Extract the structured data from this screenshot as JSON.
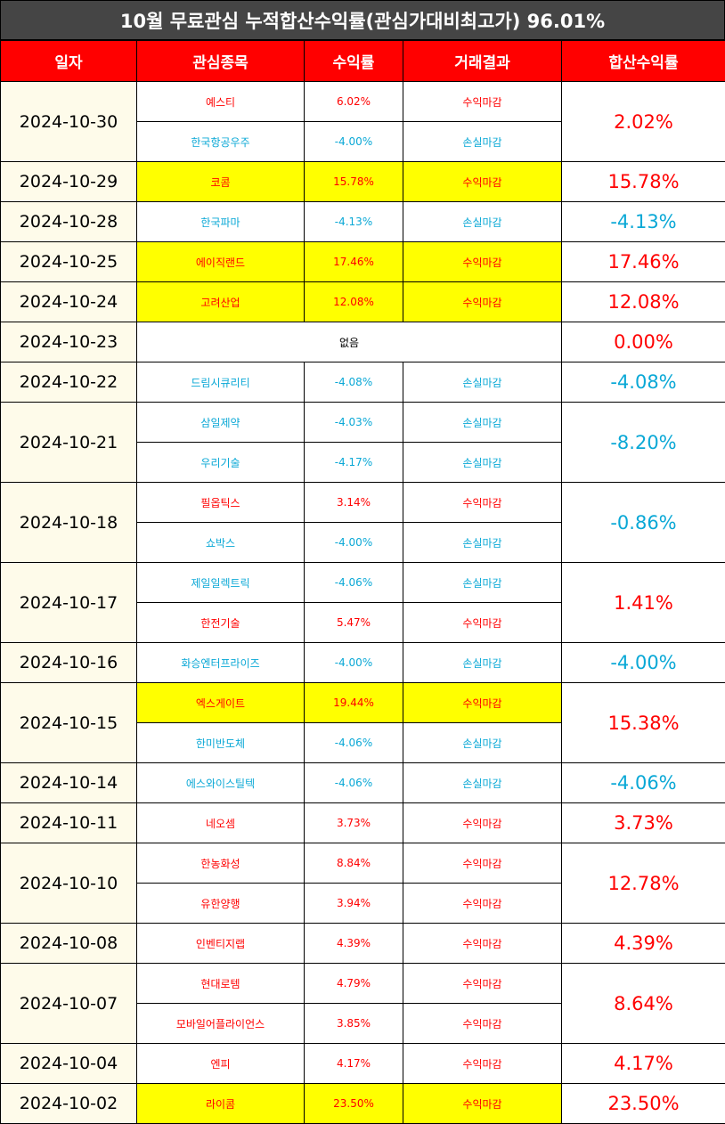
{
  "title": "10월 무료관심 누적합산수익률(관심가대비최고가) 96.01%",
  "headers": {
    "date": "일자",
    "stock": "관심종목",
    "ret": "수익률",
    "result": "거래결과",
    "total": "합산수익률"
  },
  "colors": {
    "header_bg": "#ff0000",
    "title_bg": "#454545",
    "profit": "#ff0000",
    "loss": "#0aa8d6",
    "highlight": "#ffff00",
    "date_bg": "#fefbea"
  },
  "rows": [
    {
      "date": "2024-10-30",
      "total": "2.02%",
      "total_sign": "profit",
      "items": [
        {
          "stock": "예스티",
          "ret": "6.02%",
          "result": "수익마감",
          "sign": "profit",
          "hl": false
        },
        {
          "stock": "한국항공우주",
          "ret": "-4.00%",
          "result": "손실마감",
          "sign": "loss",
          "hl": false
        }
      ]
    },
    {
      "date": "2024-10-29",
      "total": "15.78%",
      "total_sign": "profit",
      "items": [
        {
          "stock": "코콤",
          "ret": "15.78%",
          "result": "수익마감",
          "sign": "profit",
          "hl": true
        }
      ]
    },
    {
      "date": "2024-10-28",
      "total": "-4.13%",
      "total_sign": "loss",
      "items": [
        {
          "stock": "한국파마",
          "ret": "-4.13%",
          "result": "손실마감",
          "sign": "loss",
          "hl": false
        }
      ]
    },
    {
      "date": "2024-10-25",
      "total": "17.46%",
      "total_sign": "profit",
      "items": [
        {
          "stock": "에이직랜드",
          "ret": "17.46%",
          "result": "수익마감",
          "sign": "profit",
          "hl": true
        }
      ]
    },
    {
      "date": "2024-10-24",
      "total": "12.08%",
      "total_sign": "profit",
      "items": [
        {
          "stock": "고려산업",
          "ret": "12.08%",
          "result": "수익마감",
          "sign": "profit",
          "hl": true
        }
      ]
    },
    {
      "date": "2024-10-23",
      "total": "0.00%",
      "total_sign": "zero",
      "none": "없음",
      "items": []
    },
    {
      "date": "2024-10-22",
      "total": "-4.08%",
      "total_sign": "loss",
      "items": [
        {
          "stock": "드림시큐리티",
          "ret": "-4.08%",
          "result": "손실마감",
          "sign": "loss",
          "hl": false
        }
      ]
    },
    {
      "date": "2024-10-21",
      "total": "-8.20%",
      "total_sign": "loss",
      "items": [
        {
          "stock": "삼일제약",
          "ret": "-4.03%",
          "result": "손실마감",
          "sign": "loss",
          "hl": false
        },
        {
          "stock": "우리기술",
          "ret": "-4.17%",
          "result": "손실마감",
          "sign": "loss",
          "hl": false
        }
      ]
    },
    {
      "date": "2024-10-18",
      "total": "-0.86%",
      "total_sign": "loss",
      "items": [
        {
          "stock": "필옵틱스",
          "ret": "3.14%",
          "result": "수익마감",
          "sign": "profit",
          "hl": false
        },
        {
          "stock": "쇼박스",
          "ret": "-4.00%",
          "result": "손실마감",
          "sign": "loss",
          "hl": false
        }
      ]
    },
    {
      "date": "2024-10-17",
      "total": "1.41%",
      "total_sign": "profit",
      "items": [
        {
          "stock": "제일일렉트릭",
          "ret": "-4.06%",
          "result": "손실마감",
          "sign": "loss",
          "hl": false
        },
        {
          "stock": "한전기술",
          "ret": "5.47%",
          "result": "수익마감",
          "sign": "profit",
          "hl": false
        }
      ]
    },
    {
      "date": "2024-10-16",
      "total": "-4.00%",
      "total_sign": "loss",
      "items": [
        {
          "stock": "화승엔터프라이즈",
          "ret": "-4.00%",
          "result": "손실마감",
          "sign": "loss",
          "hl": false
        }
      ]
    },
    {
      "date": "2024-10-15",
      "total": "15.38%",
      "total_sign": "profit",
      "items": [
        {
          "stock": "엑스게이트",
          "ret": "19.44%",
          "result": "수익마감",
          "sign": "profit",
          "hl": true
        },
        {
          "stock": "한미반도체",
          "ret": "-4.06%",
          "result": "손실마감",
          "sign": "loss",
          "hl": false
        }
      ]
    },
    {
      "date": "2024-10-14",
      "total": "-4.06%",
      "total_sign": "loss",
      "items": [
        {
          "stock": "에스와이스틸텍",
          "ret": "-4.06%",
          "result": "손실마감",
          "sign": "loss",
          "hl": false
        }
      ]
    },
    {
      "date": "2024-10-11",
      "total": "3.73%",
      "total_sign": "profit",
      "items": [
        {
          "stock": "네오셈",
          "ret": "3.73%",
          "result": "수익마감",
          "sign": "profit",
          "hl": false
        }
      ]
    },
    {
      "date": "2024-10-10",
      "total": "12.78%",
      "total_sign": "profit",
      "items": [
        {
          "stock": "한농화성",
          "ret": "8.84%",
          "result": "수익마감",
          "sign": "profit",
          "hl": false
        },
        {
          "stock": "유한양행",
          "ret": "3.94%",
          "result": "수익마감",
          "sign": "profit",
          "hl": false
        }
      ]
    },
    {
      "date": "2024-10-08",
      "total": "4.39%",
      "total_sign": "profit",
      "items": [
        {
          "stock": "인벤티지랩",
          "ret": "4.39%",
          "result": "수익마감",
          "sign": "profit",
          "hl": false
        }
      ]
    },
    {
      "date": "2024-10-07",
      "total": "8.64%",
      "total_sign": "profit",
      "items": [
        {
          "stock": "현대로템",
          "ret": "4.79%",
          "result": "수익마감",
          "sign": "profit",
          "hl": false
        },
        {
          "stock": "모바일어플라이언스",
          "ret": "3.85%",
          "result": "수익마감",
          "sign": "profit",
          "hl": false
        }
      ]
    },
    {
      "date": "2024-10-04",
      "total": "4.17%",
      "total_sign": "profit",
      "items": [
        {
          "stock": "엔피",
          "ret": "4.17%",
          "result": "수익마감",
          "sign": "profit",
          "hl": false
        }
      ]
    },
    {
      "date": "2024-10-02",
      "total": "23.50%",
      "total_sign": "profit",
      "items": [
        {
          "stock": "라이콤",
          "ret": "23.50%",
          "result": "수익마감",
          "sign": "profit",
          "hl": true
        }
      ]
    }
  ]
}
